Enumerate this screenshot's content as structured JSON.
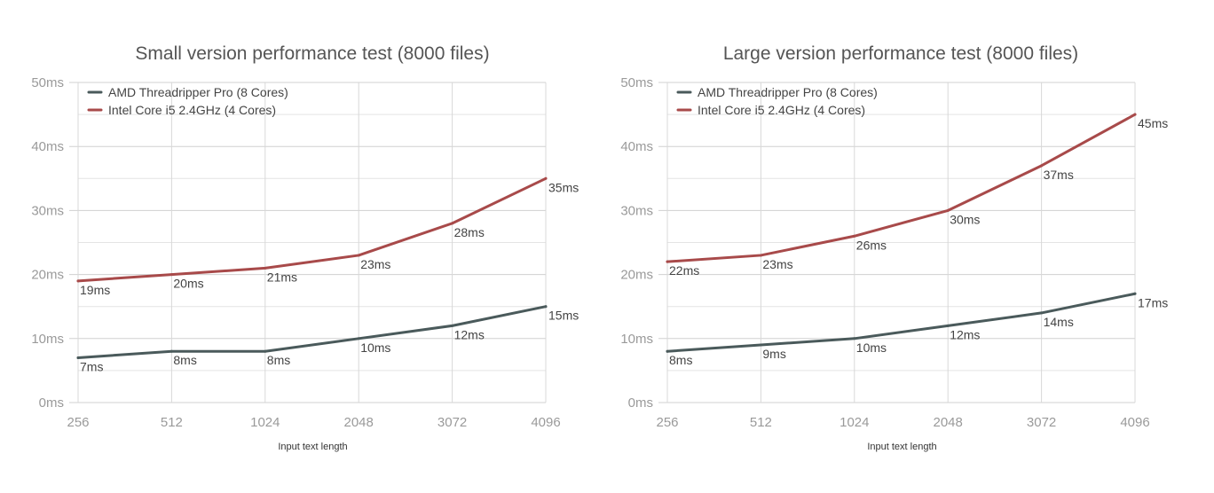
{
  "chart_data": [
    {
      "type": "line",
      "title": "Small version performance test (8000 files)",
      "xlabel": "Input text length",
      "ylabel": "",
      "categories": [
        "256",
        "512",
        "1024",
        "2048",
        "3072",
        "4096"
      ],
      "y_ticks": [
        "0ms",
        "10ms",
        "20ms",
        "30ms",
        "40ms",
        "50ms"
      ],
      "ylim": [
        0,
        50
      ],
      "grid": true,
      "legend_position": "top-left",
      "series": [
        {
          "name": "AMD Threadripper Pro (8 Cores)",
          "color": "#4a5a5b",
          "values": [
            7,
            8,
            8,
            10,
            12,
            15
          ],
          "labels": [
            "7ms",
            "8ms",
            "8ms",
            "10ms",
            "12ms",
            "15ms"
          ]
        },
        {
          "name": "Intel Core i5 2.4GHz (4 Cores)",
          "color": "#a84a4a",
          "values": [
            19,
            20,
            21,
            23,
            28,
            35
          ],
          "labels": [
            "19ms",
            "20ms",
            "21ms",
            "23ms",
            "28ms",
            "35ms"
          ]
        }
      ]
    },
    {
      "type": "line",
      "title": "Large version performance test (8000 files)",
      "xlabel": "Input text length",
      "ylabel": "",
      "categories": [
        "256",
        "512",
        "1024",
        "2048",
        "3072",
        "4096"
      ],
      "y_ticks": [
        "0ms",
        "10ms",
        "20ms",
        "30ms",
        "40ms",
        "50ms"
      ],
      "ylim": [
        0,
        50
      ],
      "grid": true,
      "legend_position": "top-left",
      "series": [
        {
          "name": "AMD Threadripper Pro (8 Cores)",
          "color": "#4a5a5b",
          "values": [
            8,
            9,
            10,
            12,
            14,
            17
          ],
          "labels": [
            "8ms",
            "9ms",
            "10ms",
            "12ms",
            "14ms",
            "17ms"
          ]
        },
        {
          "name": "Intel Core i5 2.4GHz (4 Cores)",
          "color": "#a84a4a",
          "values": [
            22,
            23,
            26,
            30,
            37,
            45
          ],
          "labels": [
            "22ms",
            "23ms",
            "26ms",
            "30ms",
            "37ms",
            "45ms"
          ]
        }
      ]
    }
  ]
}
